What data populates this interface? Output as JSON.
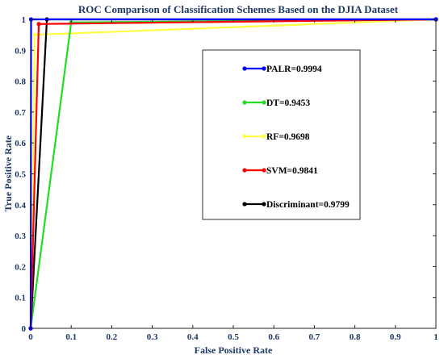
{
  "chart_data": {
    "type": "line",
    "title": "ROC Comparison of Classification Schemes Based on the DJIA Dataset",
    "xlabel": "False Positive Rate",
    "ylabel": "True Positive Rate",
    "xlim": [
      0,
      1
    ],
    "ylim": [
      0,
      1
    ],
    "xticks": [
      "0",
      "0.1",
      "0.2",
      "0.3",
      "0.4",
      "0.5",
      "0.6",
      "0.7",
      "0.8",
      "0.9",
      "1"
    ],
    "yticks": [
      "0",
      "0.1",
      "0.2",
      "0.3",
      "0.4",
      "0.5",
      "0.6",
      "0.7",
      "0.8",
      "0.9",
      "1"
    ],
    "grid": false,
    "legend_position": "right-center",
    "series": [
      {
        "name": "PALR=0.9994",
        "color": "#0000ff",
        "x": [
          0,
          0.001,
          1
        ],
        "y": [
          0,
          1,
          1
        ]
      },
      {
        "name": "DT=0.9453",
        "color": "#22dd22",
        "x": [
          0,
          0.1,
          1
        ],
        "y": [
          0,
          0.99,
          1
        ]
      },
      {
        "name": "RF=0.9698",
        "color": "#ffff44",
        "x": [
          0,
          0.01,
          1
        ],
        "y": [
          0,
          0.95,
          1
        ]
      },
      {
        "name": "SVM=0.9841",
        "color": "#ff0000",
        "x": [
          0,
          0.02,
          1
        ],
        "y": [
          0,
          0.985,
          1
        ]
      },
      {
        "name": "Discriminant=0.9799",
        "color": "#000000",
        "x": [
          0,
          0.04,
          1
        ],
        "y": [
          0,
          1,
          1
        ]
      }
    ]
  }
}
